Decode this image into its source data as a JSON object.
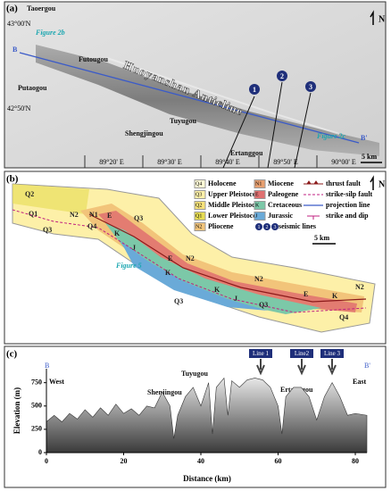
{
  "panel_a": {
    "label": "(a)",
    "places": [
      "Taoergou",
      "Futougou",
      "Putaogou",
      "Tuyugou",
      "Shengjingou",
      "Ertanggou"
    ],
    "latitudes": [
      "43°00'N",
      "42°50'N"
    ],
    "longitudes": [
      "89°20' E",
      "89°30' E",
      "89°40' E",
      "89°50' E",
      "90°00' E"
    ],
    "structure": "Huoyanshan Anticline",
    "figure_refs": [
      "Figure 2b",
      "Figure 2c"
    ],
    "profile_ends": [
      "B",
      "B'"
    ],
    "seismic_lines": [
      "1",
      "2",
      "3"
    ],
    "scale": "5 km",
    "north": "N"
  },
  "panel_b": {
    "label": "(b)",
    "units": [
      "Q2",
      "Q1",
      "N2",
      "N1",
      "E",
      "Q3",
      "Q4",
      "Q3",
      "K",
      "J",
      "E",
      "N2",
      "K",
      "N2",
      "Q3",
      "K",
      "J",
      "Q3",
      "E",
      "K",
      "N2",
      "Q4"
    ],
    "figure_ref": "Figure 5",
    "scale": "5 km",
    "north": "N",
    "legend": [
      {
        "symbol": "Q4",
        "text": "Holocene",
        "color": "#fffbd6"
      },
      {
        "symbol": "Q3",
        "text": "Upper Pleistocene",
        "color": "#fdf0a8"
      },
      {
        "symbol": "Q2",
        "text": "Middle Pleistocene",
        "color": "#f7e27a"
      },
      {
        "symbol": "Q1",
        "text": "Lower Pleistocene",
        "color": "#e6dc52"
      },
      {
        "symbol": "N2",
        "text": "Pliocene",
        "color": "#f2c47a"
      },
      {
        "symbol": "N1",
        "text": "Miocene",
        "color": "#e8a070"
      },
      {
        "symbol": "E",
        "text": "Paleogene",
        "color": "#e07070"
      },
      {
        "symbol": "K",
        "text": "Cretaceous",
        "color": "#7cc8a8"
      },
      {
        "symbol": "J",
        "text": "Jurassic",
        "color": "#6aaad8"
      }
    ],
    "line_legend": [
      "thrust fault",
      "strike-silp fault",
      "projection line",
      "strike and dip"
    ],
    "seismic_symbols": [
      "1",
      "2",
      "3"
    ],
    "seismic_text": "seismic lines"
  },
  "chart_data": {
    "type": "area",
    "label": "(c)",
    "xlabel": "Distance (km)",
    "ylabel": "Elevation (m)",
    "x": [
      0,
      2,
      4,
      6,
      8,
      10,
      12,
      14,
      16,
      18,
      20,
      22,
      24,
      26,
      28,
      30,
      32,
      33,
      34,
      36,
      38,
      40,
      42,
      43,
      44,
      46,
      47,
      48,
      50,
      52,
      54,
      56,
      58,
      60,
      61,
      62,
      64,
      66,
      68,
      70,
      72,
      74,
      76,
      78,
      80,
      83
    ],
    "values": [
      330,
      400,
      330,
      420,
      360,
      460,
      380,
      480,
      400,
      520,
      420,
      470,
      400,
      500,
      480,
      650,
      500,
      150,
      400,
      600,
      700,
      500,
      750,
      200,
      700,
      800,
      400,
      770,
      700,
      780,
      800,
      780,
      700,
      500,
      200,
      600,
      700,
      700,
      600,
      350,
      600,
      750,
      600,
      400,
      420,
      400
    ],
    "xlim": [
      0,
      83
    ],
    "ylim": [
      0,
      900
    ],
    "xticks": [
      0,
      20,
      40,
      60,
      80
    ],
    "yticks": [
      0,
      250,
      500,
      750
    ],
    "annotations": [
      "B",
      "West",
      "B'",
      "East",
      "Shenjingou",
      "Tuyugou",
      "Ertanggou"
    ],
    "seismic_lines": [
      "Line 1",
      "Line2",
      "Line 3"
    ]
  }
}
